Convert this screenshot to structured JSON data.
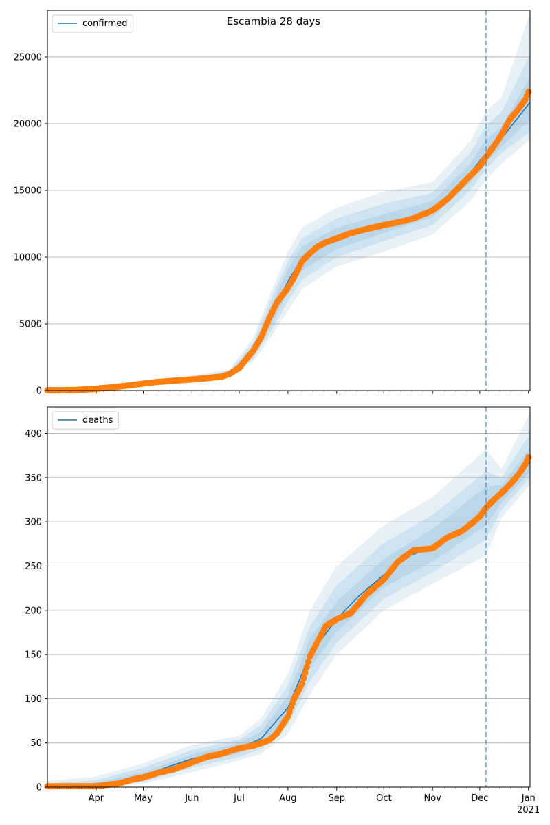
{
  "figure": {
    "title": "Escambia 28 days",
    "colors": {
      "model": "#1f77b4",
      "observed": "#ff7f0e",
      "band": "#1f77b4",
      "grid": "#b0b0b0",
      "vline": "#1f77b4"
    }
  },
  "chart_data": [
    {
      "type": "line",
      "name": "confirmed-panel",
      "legend": "confirmed",
      "legend_position": "upper-left",
      "grid": "y",
      "ylim": [
        0,
        28500
      ],
      "yticks": [
        0,
        5000,
        10000,
        15000,
        20000,
        25000
      ],
      "xlim": [
        "2020-03-01",
        "2021-01-02"
      ],
      "forecast_start": "2020-12-05",
      "model": {
        "x": [
          "2020-03-01",
          "2020-03-15",
          "2020-04-01",
          "2020-04-15",
          "2020-05-01",
          "2020-05-15",
          "2020-06-01",
          "2020-06-15",
          "2020-06-25",
          "2020-07-01",
          "2020-07-10",
          "2020-07-20",
          "2020-08-01",
          "2020-08-10",
          "2020-08-20",
          "2020-09-01",
          "2020-09-15",
          "2020-10-01",
          "2020-10-15",
          "2020-11-01",
          "2020-11-15",
          "2020-11-25",
          "2020-12-05",
          "2020-12-15",
          "2021-01-02"
        ],
        "y": [
          20,
          30,
          120,
          300,
          520,
          700,
          850,
          1000,
          1250,
          1700,
          2900,
          5200,
          8200,
          9900,
          10600,
          11300,
          11900,
          12400,
          12800,
          13600,
          14900,
          16300,
          17800,
          18900,
          21600
        ]
      },
      "bands": [
        {
          "x": [
            "2020-03-01",
            "2020-04-01",
            "2020-05-01",
            "2020-06-01",
            "2020-06-25",
            "2020-07-10",
            "2020-07-20",
            "2020-08-01",
            "2020-08-10",
            "2020-09-01",
            "2020-10-01",
            "2020-11-01",
            "2020-11-25",
            "2020-12-05",
            "2020-12-15",
            "2021-01-02"
          ],
          "low": [
            0,
            60,
            380,
            650,
            1000,
            2200,
            3800,
            6000,
            7600,
            9300,
            10400,
            11700,
            14200,
            15800,
            17000,
            18800
          ],
          "high": [
            60,
            200,
            700,
            1100,
            1600,
            4000,
            7000,
            10400,
            12200,
            13700,
            14900,
            15600,
            18700,
            20900,
            22000,
            28300
          ]
        },
        {
          "x": [
            "2020-03-01",
            "2020-04-01",
            "2020-05-01",
            "2020-06-01",
            "2020-06-25",
            "2020-07-10",
            "2020-07-20",
            "2020-08-01",
            "2020-08-10",
            "2020-09-01",
            "2020-10-01",
            "2020-11-01",
            "2020-11-25",
            "2020-12-05",
            "2020-12-15",
            "2021-01-02"
          ],
          "low": [
            0,
            80,
            420,
            720,
            1080,
            2400,
            4200,
            6700,
            8300,
            10000,
            11200,
            12400,
            15000,
            16600,
            17800,
            19400
          ],
          "high": [
            45,
            170,
            640,
            1000,
            1480,
            3600,
            6500,
            9700,
            11400,
            12900,
            14000,
            14800,
            17800,
            19800,
            20900,
            25200
          ]
        },
        {
          "x": [
            "2020-03-01",
            "2020-04-01",
            "2020-05-01",
            "2020-06-01",
            "2020-06-25",
            "2020-07-10",
            "2020-07-20",
            "2020-08-01",
            "2020-08-10",
            "2020-09-01",
            "2020-10-01",
            "2020-11-01",
            "2020-11-25",
            "2020-12-05",
            "2020-12-15",
            "2021-01-02"
          ],
          "low": [
            5,
            95,
            460,
            780,
            1150,
            2600,
            4600,
            7400,
            9000,
            10600,
            11800,
            13000,
            15600,
            17100,
            18300,
            20300
          ],
          "high": [
            35,
            145,
            590,
            930,
            1380,
            3300,
            6000,
            9100,
            10800,
            12200,
            13200,
            14200,
            17000,
            18800,
            19800,
            23500
          ]
        }
      ],
      "observed": {
        "x": [
          "2020-03-01",
          "2020-03-10",
          "2020-03-20",
          "2020-03-25",
          "2020-04-01",
          "2020-04-10",
          "2020-04-20",
          "2020-05-01",
          "2020-05-10",
          "2020-05-20",
          "2020-06-01",
          "2020-06-10",
          "2020-06-20",
          "2020-06-25",
          "2020-07-01",
          "2020-07-05",
          "2020-07-10",
          "2020-07-15",
          "2020-07-20",
          "2020-07-25",
          "2020-08-01",
          "2020-08-05",
          "2020-08-10",
          "2020-08-15",
          "2020-08-20",
          "2020-08-25",
          "2020-09-01",
          "2020-09-10",
          "2020-09-20",
          "2020-10-01",
          "2020-10-10",
          "2020-10-20",
          "2020-11-01",
          "2020-11-10",
          "2020-11-20",
          "2020-11-25",
          "2020-12-01",
          "2020-12-05",
          "2020-12-10",
          "2020-12-15",
          "2020-12-20",
          "2020-12-25",
          "2020-12-30",
          "2021-01-01"
        ],
        "y": [
          20,
          25,
          40,
          80,
          130,
          230,
          350,
          520,
          640,
          730,
          830,
          920,
          1050,
          1250,
          1700,
          2300,
          3000,
          4000,
          5400,
          6600,
          7700,
          8500,
          9700,
          10300,
          10800,
          11100,
          11400,
          11800,
          12100,
          12400,
          12600,
          12900,
          13500,
          14300,
          15500,
          16100,
          16800,
          17500,
          18300,
          19200,
          20300,
          21000,
          21800,
          22400
        ]
      }
    },
    {
      "type": "line",
      "name": "deaths-panel",
      "legend": "deaths",
      "legend_position": "upper-left",
      "grid": "y",
      "ylim": [
        0,
        430
      ],
      "yticks": [
        0,
        50,
        100,
        150,
        200,
        250,
        300,
        350,
        400
      ],
      "xlim": [
        "2020-03-01",
        "2021-01-02"
      ],
      "xtick_labels": [
        "Apr",
        "May",
        "Jun",
        "Jul",
        "Aug",
        "Sep",
        "Oct",
        "Nov",
        "Dec",
        "Jan"
      ],
      "year_label": "2021",
      "forecast_start": "2020-12-05",
      "model": {
        "x": [
          "2020-03-01",
          "2020-03-15",
          "2020-04-01",
          "2020-04-15",
          "2020-05-01",
          "2020-05-15",
          "2020-06-01",
          "2020-06-15",
          "2020-07-01",
          "2020-07-15",
          "2020-08-01",
          "2020-08-15",
          "2020-09-01",
          "2020-09-15",
          "2020-10-01",
          "2020-10-15",
          "2020-11-01",
          "2020-11-15",
          "2020-12-01",
          "2020-12-05",
          "2020-12-15",
          "2021-01-02"
        ],
        "y": [
          0,
          0.5,
          2,
          6,
          13,
          22,
          32,
          38,
          44,
          55,
          90,
          150,
          190,
          216,
          240,
          260,
          272,
          285,
          305,
          318,
          332,
          368
        ]
      },
      "bands": [
        {
          "x": [
            "2020-03-01",
            "2020-04-01",
            "2020-05-01",
            "2020-06-01",
            "2020-07-01",
            "2020-07-15",
            "2020-08-01",
            "2020-08-15",
            "2020-09-01",
            "2020-10-01",
            "2020-11-01",
            "2020-12-05",
            "2020-12-15",
            "2021-01-02"
          ],
          "low": [
            0,
            0,
            4,
            17,
            30,
            38,
            60,
            105,
            150,
            200,
            230,
            262,
            305,
            342
          ],
          "high": [
            7,
            12,
            27,
            48,
            58,
            78,
            128,
            200,
            250,
            296,
            328,
            382,
            360,
            423
          ]
        },
        {
          "x": [
            "2020-03-01",
            "2020-04-01",
            "2020-05-01",
            "2020-06-01",
            "2020-07-01",
            "2020-07-15",
            "2020-08-01",
            "2020-08-15",
            "2020-09-01",
            "2020-10-01",
            "2020-11-01",
            "2020-12-05",
            "2020-12-15",
            "2021-01-02"
          ],
          "low": [
            0,
            0,
            6,
            22,
            34,
            43,
            70,
            120,
            163,
            213,
            243,
            280,
            314,
            350
          ],
          "high": [
            4,
            8,
            22,
            42,
            54,
            70,
            115,
            182,
            228,
            276,
            308,
            357,
            350,
            400
          ]
        },
        {
          "x": [
            "2020-03-01",
            "2020-04-01",
            "2020-05-01",
            "2020-06-01",
            "2020-07-01",
            "2020-07-15",
            "2020-08-01",
            "2020-08-15",
            "2020-09-01",
            "2020-10-01",
            "2020-11-01",
            "2020-12-05",
            "2020-12-15",
            "2021-01-02"
          ],
          "low": [
            0,
            1,
            9,
            27,
            38,
            49,
            79,
            135,
            175,
            226,
            255,
            296,
            322,
            357
          ],
          "high": [
            2,
            5,
            17,
            37,
            50,
            63,
            103,
            168,
            210,
            258,
            292,
            340,
            342,
            383
          ]
        }
      ],
      "observed": {
        "x": [
          "2020-03-01",
          "2020-03-20",
          "2020-04-01",
          "2020-04-10",
          "2020-04-15",
          "2020-04-25",
          "2020-05-01",
          "2020-05-10",
          "2020-05-20",
          "2020-06-01",
          "2020-06-10",
          "2020-06-20",
          "2020-07-01",
          "2020-07-10",
          "2020-07-20",
          "2020-07-25",
          "2020-08-01",
          "2020-08-05",
          "2020-08-10",
          "2020-08-15",
          "2020-08-20",
          "2020-08-25",
          "2020-09-01",
          "2020-09-10",
          "2020-09-20",
          "2020-10-01",
          "2020-10-10",
          "2020-10-20",
          "2020-11-01",
          "2020-11-10",
          "2020-11-20",
          "2020-11-25",
          "2020-12-01",
          "2020-12-05",
          "2020-12-10",
          "2020-12-15",
          "2020-12-20",
          "2020-12-25",
          "2020-12-30",
          "2021-01-01"
        ],
        "y": [
          1,
          1,
          1,
          3,
          4,
          9,
          11,
          16,
          20,
          28,
          34,
          38,
          44,
          47,
          53,
          61,
          80,
          100,
          117,
          148,
          165,
          182,
          190,
          197,
          218,
          235,
          255,
          268,
          270,
          282,
          290,
          297,
          306,
          316,
          325,
          333,
          342,
          352,
          365,
          373
        ]
      }
    }
  ]
}
